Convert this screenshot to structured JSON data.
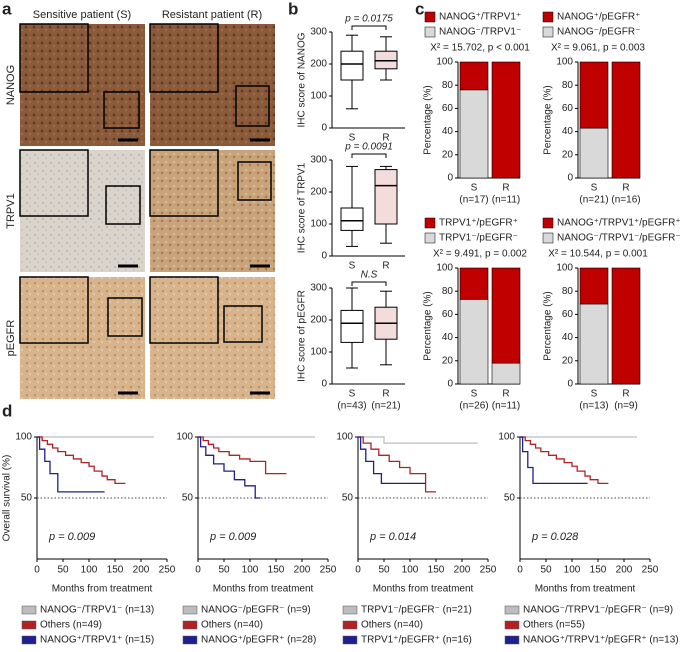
{
  "panel_labels": [
    "a",
    "b",
    "c",
    "d"
  ],
  "panel_a": {
    "columns": [
      "Sensitive patient (S)",
      "Resistant patient (R)"
    ],
    "rows": [
      "NANOG",
      "TRPV1",
      "pEGFR"
    ]
  },
  "chart_data": [
    {
      "type": "box",
      "ylabel": "IHC score of NANOG",
      "annotation": "p = 0.0175",
      "categories": [
        "S",
        "R"
      ],
      "ylim": [
        0,
        300
      ],
      "yticks": [
        0,
        100,
        200,
        300
      ],
      "values": [
        {
          "min": 60,
          "q1": 150,
          "median": 200,
          "q3": 240,
          "max": 290
        },
        {
          "min": 150,
          "q1": 185,
          "median": 210,
          "q3": 240,
          "max": 285
        }
      ]
    },
    {
      "type": "box",
      "ylabel": "IHC score of TRPV1",
      "annotation": "p = 0.0091",
      "categories": [
        "S",
        "R"
      ],
      "ylim": [
        0,
        300
      ],
      "yticks": [
        0,
        100,
        200,
        300
      ],
      "values": [
        {
          "min": 30,
          "q1": 80,
          "median": 110,
          "q3": 150,
          "max": 280
        },
        {
          "min": 40,
          "q1": 100,
          "median": 220,
          "q3": 270,
          "max": 280
        }
      ]
    },
    {
      "type": "box",
      "ylabel": "IHC score of pEGFR",
      "annotation": "N.S",
      "categories": [
        "S",
        "R"
      ],
      "category_notes": [
        "(n=43)",
        "(n=21)"
      ],
      "ylim": [
        0,
        300
      ],
      "yticks": [
        0,
        100,
        200,
        300
      ],
      "values": [
        {
          "min": 50,
          "q1": 130,
          "median": 190,
          "q3": 230,
          "max": 300
        },
        {
          "min": 60,
          "q1": 140,
          "median": 190,
          "q3": 240,
          "max": 290
        }
      ]
    },
    {
      "type": "bar",
      "stacked": true,
      "ylabel": "Percentage (%)",
      "annotation": "X² = 15.702, p < 0.001",
      "categories": [
        "S",
        "R"
      ],
      "category_notes": [
        "(n=17)",
        "(n=11)"
      ],
      "ylim": [
        0,
        100
      ],
      "yticks": [
        0,
        20,
        40,
        60,
        80,
        100
      ],
      "series": [
        {
          "name": "NANOG⁻/TRPV1⁻",
          "color": "#d9d9d9",
          "values": [
            76,
            0
          ]
        },
        {
          "name": "NANOG⁺/TRPV1⁺",
          "color": "#c00000",
          "values": [
            24,
            100
          ]
        }
      ]
    },
    {
      "type": "bar",
      "stacked": true,
      "ylabel": "Percentage (%)",
      "annotation": "X² = 9.061, p = 0.003",
      "categories": [
        "S",
        "R"
      ],
      "category_notes": [
        "(n=21)",
        "(n=16)"
      ],
      "ylim": [
        0,
        100
      ],
      "yticks": [
        0,
        20,
        40,
        60,
        80,
        100
      ],
      "series": [
        {
          "name": "NANOG⁻/pEGFR⁻",
          "color": "#d9d9d9",
          "values": [
            43,
            0
          ]
        },
        {
          "name": "NANOG⁺/pEGFR⁺",
          "color": "#c00000",
          "values": [
            57,
            100
          ]
        }
      ]
    },
    {
      "type": "bar",
      "stacked": true,
      "ylabel": "Percentage (%)",
      "annotation": "X² = 9.491, p = 0.002",
      "categories": [
        "S",
        "R"
      ],
      "category_notes": [
        "(n=26)",
        "(n=11)"
      ],
      "ylim": [
        0,
        100
      ],
      "yticks": [
        0,
        20,
        40,
        60,
        80,
        100
      ],
      "series": [
        {
          "name": "TRPV1⁻/pEGFR⁻",
          "color": "#d9d9d9",
          "values": [
            73,
            18
          ]
        },
        {
          "name": "TRPV1⁺/pEGFR⁺",
          "color": "#c00000",
          "values": [
            27,
            82
          ]
        }
      ]
    },
    {
      "type": "bar",
      "stacked": true,
      "ylabel": "Percentage (%)",
      "annotation": "X² = 10.544, p = 0.001",
      "categories": [
        "S",
        "R"
      ],
      "category_notes": [
        "(n=13)",
        "(n=9)"
      ],
      "ylim": [
        0,
        100
      ],
      "yticks": [
        0,
        20,
        40,
        60,
        80,
        100
      ],
      "series": [
        {
          "name": "NANOG⁻/TRPV1⁻/pEGFR⁻",
          "color": "#d9d9d9",
          "values": [
            69,
            0
          ]
        },
        {
          "name": "NANOG⁺/TRPV1⁺/pEGFR⁺",
          "color": "#c00000",
          "values": [
            31,
            100
          ]
        }
      ]
    },
    {
      "type": "line",
      "step": true,
      "ylabel": "Overall survival (%)",
      "xlabel": "Months from treatment",
      "annotation": "p = 0.009",
      "xlim": [
        0,
        250
      ],
      "xticks": [
        0,
        50,
        100,
        150,
        200,
        250
      ],
      "ylim": [
        0,
        100
      ],
      "yticks": [
        50,
        100
      ],
      "reference_line": 50,
      "series": [
        {
          "name": "NANOG⁻/TRPV1⁻ (n=13)",
          "color": "#bdbdbd",
          "x": [
            0,
            225
          ],
          "values": [
            100,
            100
          ]
        },
        {
          "name": "Others (n=49)",
          "color": "#b22222",
          "x": [
            0,
            10,
            20,
            30,
            40,
            55,
            70,
            85,
            100,
            110,
            125,
            135,
            150,
            170
          ],
          "values": [
            100,
            97,
            94,
            91,
            88,
            85,
            82,
            79,
            76,
            72,
            68,
            65,
            62,
            62
          ]
        },
        {
          "name": "NANOG⁺/TRPV1⁺ (n=15)",
          "color": "#1f1f8f",
          "x": [
            0,
            5,
            15,
            25,
            40,
            130
          ],
          "values": [
            100,
            90,
            80,
            70,
            55,
            55
          ]
        }
      ]
    },
    {
      "type": "line",
      "step": true,
      "xlabel": "Months from treatment",
      "annotation": "p = 0.009",
      "xlim": [
        0,
        250
      ],
      "xticks": [
        0,
        50,
        100,
        150,
        200,
        250
      ],
      "ylim": [
        0,
        100
      ],
      "yticks": [
        50,
        100
      ],
      "reference_line": 50,
      "series": [
        {
          "name": "NANOG⁻/pEGFR⁻ (n=9)",
          "color": "#bdbdbd",
          "x": [
            0,
            225
          ],
          "values": [
            100,
            100
          ]
        },
        {
          "name": "Others (n=40)",
          "color": "#b22222",
          "x": [
            0,
            10,
            20,
            30,
            40,
            60,
            80,
            100,
            120,
            130,
            170
          ],
          "values": [
            100,
            97,
            94,
            91,
            88,
            85,
            82,
            80,
            80,
            70,
            70
          ]
        },
        {
          "name": "NANOG⁺/pEGFR⁺ (n=28)",
          "color": "#1f1f8f",
          "x": [
            0,
            5,
            15,
            30,
            50,
            70,
            90,
            110,
            120
          ],
          "values": [
            100,
            92,
            85,
            78,
            72,
            65,
            60,
            50,
            50
          ]
        }
      ]
    },
    {
      "type": "line",
      "step": true,
      "xlabel": "Months from treatment",
      "annotation": "p = 0.014",
      "xlim": [
        0,
        250
      ],
      "xticks": [
        0,
        50,
        100,
        150,
        200,
        250
      ],
      "ylim": [
        0,
        100
      ],
      "yticks": [
        50,
        100
      ],
      "reference_line": 50,
      "series": [
        {
          "name": "TRPV1⁻/pEGFR⁻ (n=21)",
          "color": "#bdbdbd",
          "x": [
            0,
            50,
            230
          ],
          "values": [
            100,
            95,
            95
          ]
        },
        {
          "name": "Others (n=40)",
          "color": "#b22222",
          "x": [
            0,
            10,
            25,
            40,
            60,
            80,
            100,
            130,
            150
          ],
          "values": [
            100,
            95,
            90,
            85,
            80,
            75,
            70,
            55,
            55
          ]
        },
        {
          "name": "TRPV1⁺/pEGFR⁺ (n=16)",
          "color": "#1f1f8f",
          "x": [
            0,
            5,
            15,
            30,
            45,
            130
          ],
          "values": [
            100,
            90,
            80,
            70,
            62,
            62
          ]
        }
      ]
    },
    {
      "type": "line",
      "step": true,
      "xlabel": "Months from treatment",
      "annotation": "p = 0.028",
      "xlim": [
        0,
        250
      ],
      "xticks": [
        0,
        50,
        100,
        150,
        200,
        250
      ],
      "ylim": [
        0,
        100
      ],
      "yticks": [
        50,
        100
      ],
      "reference_line": 50,
      "series": [
        {
          "name": "NANOG⁻/TRPV1⁻/pEGFR⁻ (n=9)",
          "color": "#bdbdbd",
          "x": [
            0,
            225
          ],
          "values": [
            100,
            100
          ]
        },
        {
          "name": "Others (n=55)",
          "color": "#b22222",
          "x": [
            0,
            10,
            20,
            30,
            40,
            55,
            70,
            85,
            100,
            110,
            125,
            135,
            150,
            170
          ],
          "values": [
            100,
            97,
            94,
            91,
            88,
            85,
            82,
            79,
            76,
            72,
            68,
            65,
            62,
            62
          ]
        },
        {
          "name": "NANOG⁺/TRPV1⁺/pEGFR⁺ (n=13)",
          "color": "#1f1f8f",
          "x": [
            0,
            5,
            15,
            25,
            130
          ],
          "values": [
            100,
            88,
            75,
            62,
            62
          ]
        }
      ]
    }
  ]
}
